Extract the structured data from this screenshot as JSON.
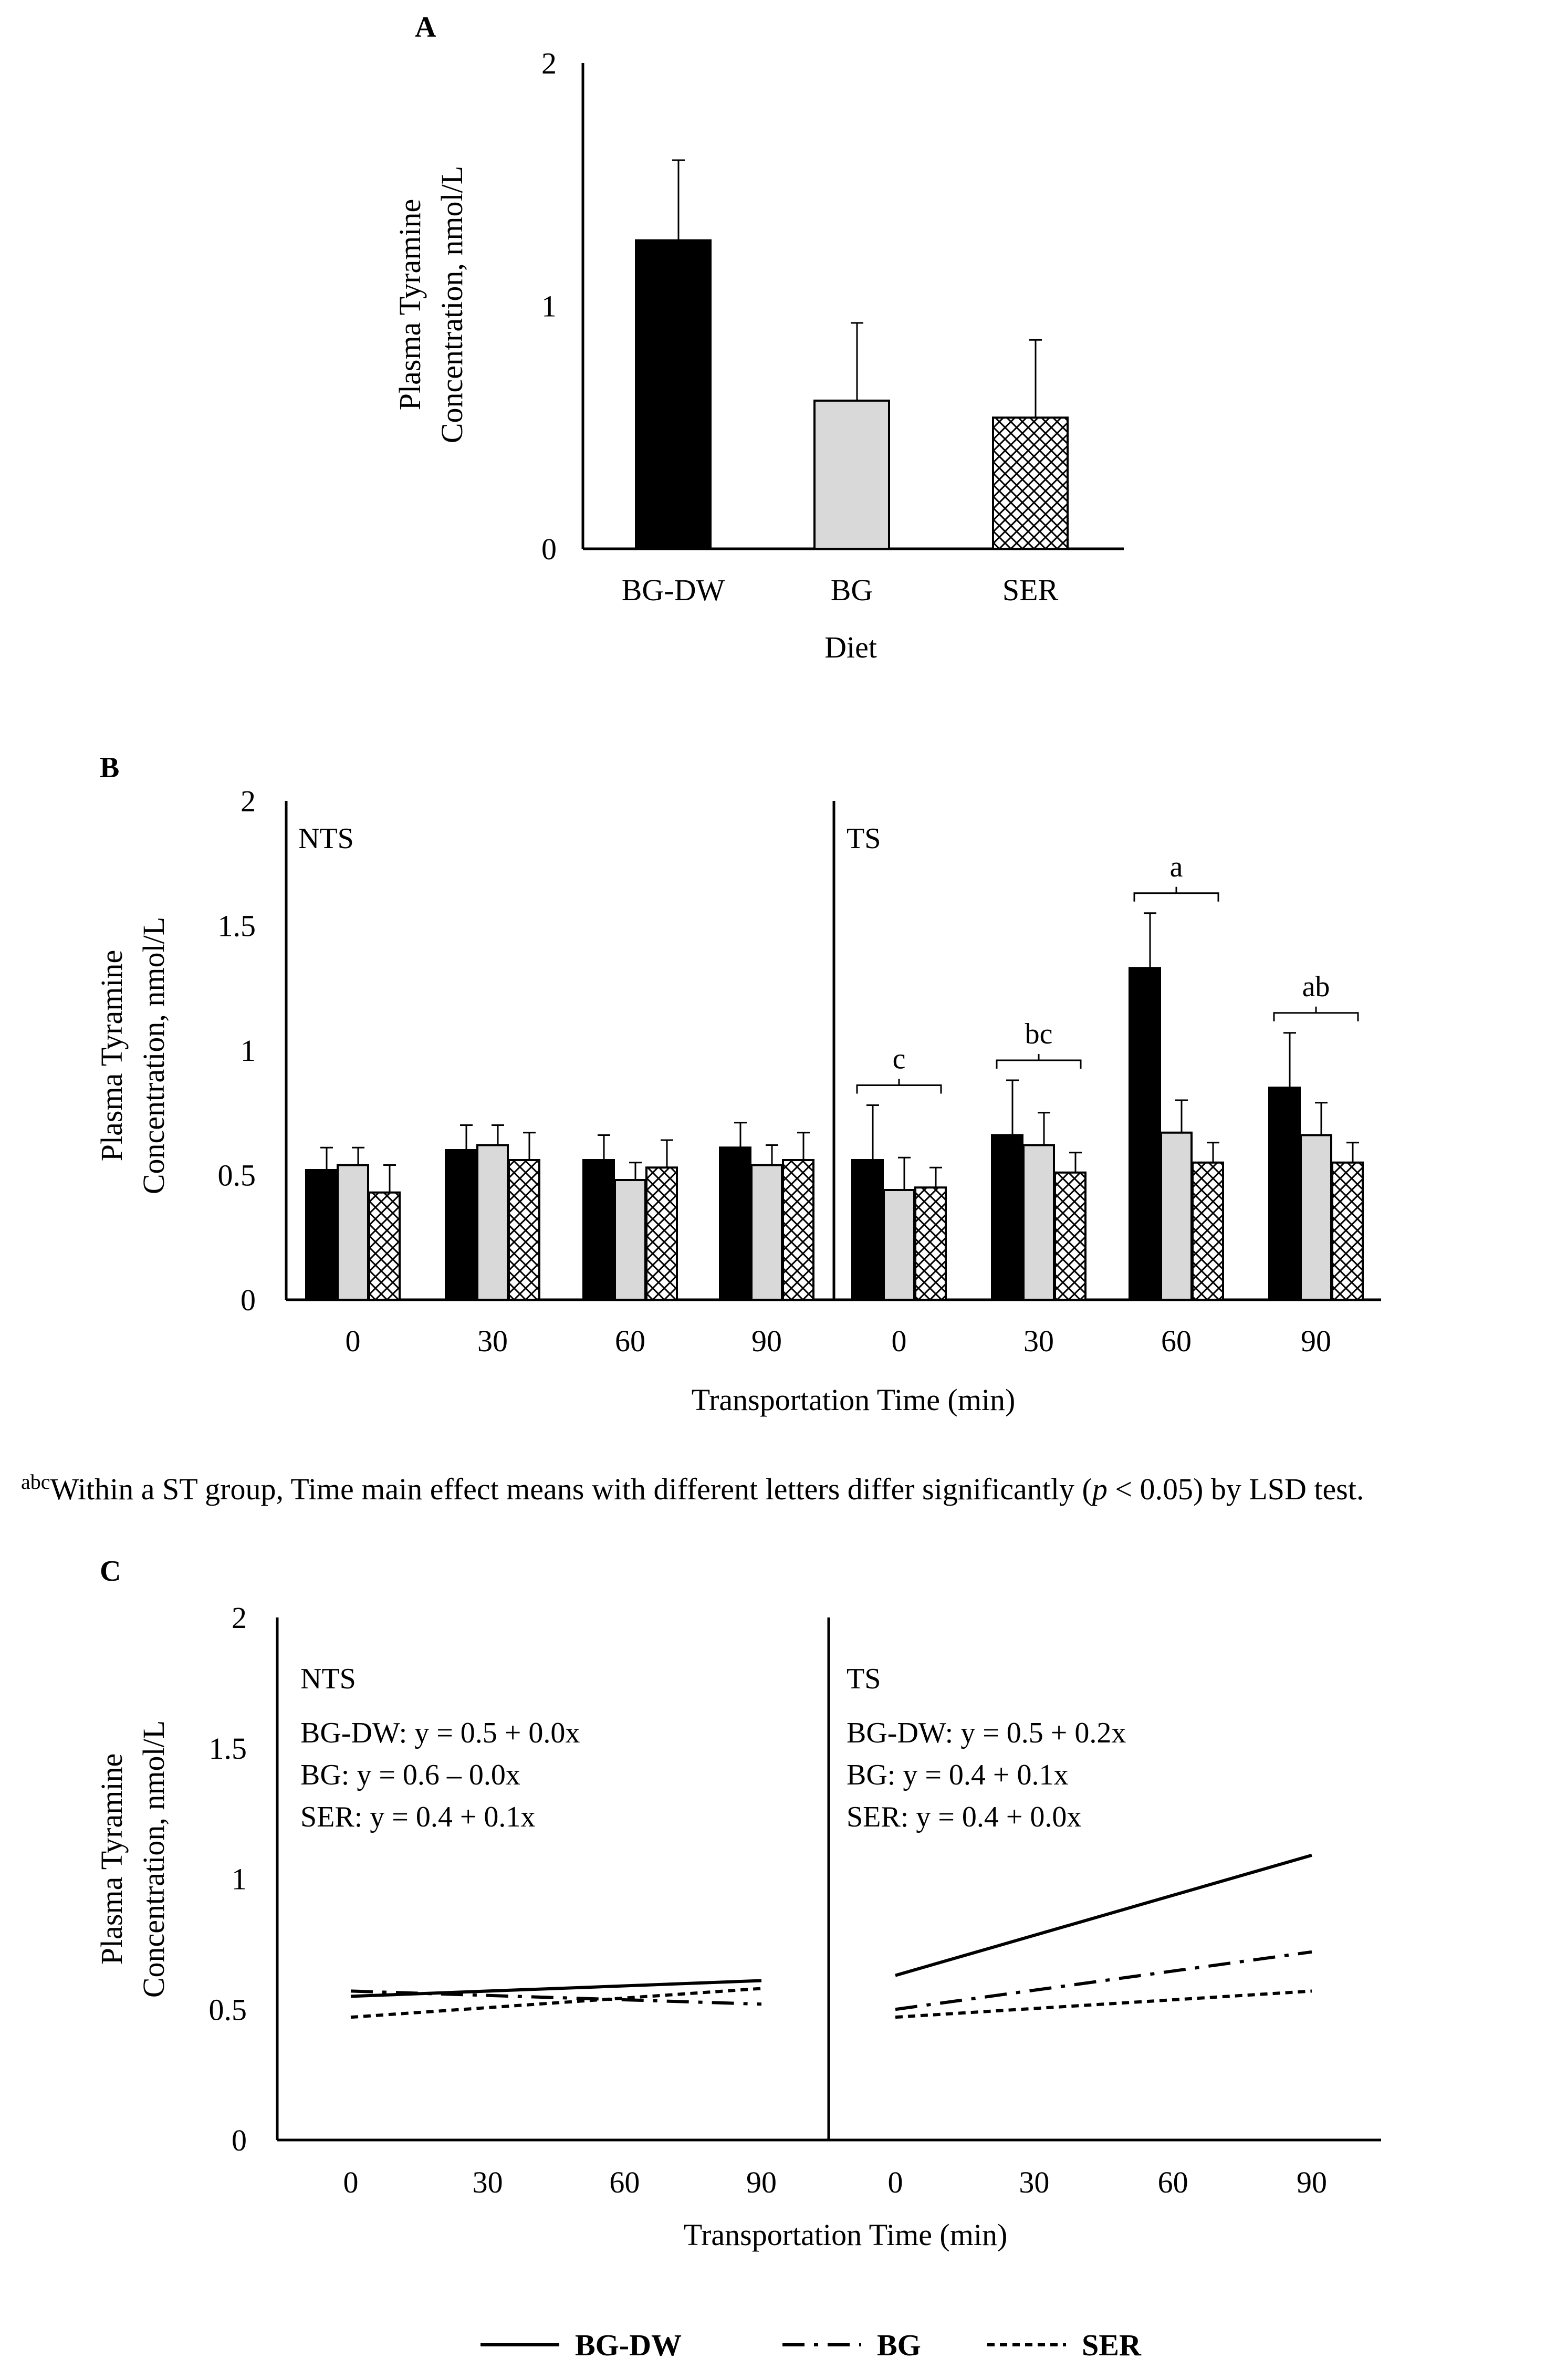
{
  "colors": {
    "bg_dw": "#000000",
    "bg": "#d9d9d9",
    "ser": "#ffffff"
  },
  "chart_data": [
    {
      "panel": "A",
      "type": "bar",
      "title": "A",
      "xlabel": "Diet",
      "ylabel_lines": [
        "Plasma Tyramine",
        "Concentration, nmol/L"
      ],
      "ylim": [
        0,
        2
      ],
      "yticks": [
        0,
        1,
        2
      ],
      "categories": [
        "BG-DW",
        "BG",
        "SER"
      ],
      "values": [
        1.27,
        0.61,
        0.54
      ],
      "errors": [
        0.33,
        0.32,
        0.32
      ],
      "fills": [
        "solid-black",
        "light-gray",
        "crosshatch"
      ]
    },
    {
      "panel": "B",
      "type": "bar",
      "title": "B",
      "xlabel": "Transportation Time (min)",
      "ylabel_lines": [
        "Plasma Tyramine",
        "Concentration, nmol/L"
      ],
      "ylim": [
        0,
        2
      ],
      "yticks": [
        0,
        0.5,
        1,
        1.5,
        2
      ],
      "ytick_labels": [
        "0",
        "0.5",
        "1",
        "1.5",
        "2"
      ],
      "groups": [
        {
          "label": "NTS",
          "categories": [
            "0",
            "30",
            "60",
            "90"
          ],
          "series": [
            {
              "name": "BG-DW",
              "values": [
                0.52,
                0.6,
                0.56,
                0.61
              ],
              "errors": [
                0.09,
                0.1,
                0.1,
                0.1
              ]
            },
            {
              "name": "BG",
              "values": [
                0.54,
                0.62,
                0.48,
                0.54
              ],
              "errors": [
                0.07,
                0.08,
                0.07,
                0.08
              ]
            },
            {
              "name": "SER",
              "values": [
                0.43,
                0.56,
                0.53,
                0.56
              ],
              "errors": [
                0.11,
                0.11,
                0.11,
                0.11
              ]
            }
          ],
          "significance": []
        },
        {
          "label": "TS",
          "categories": [
            "0",
            "30",
            "60",
            "90"
          ],
          "series": [
            {
              "name": "BG-DW",
              "values": [
                0.56,
                0.66,
                1.33,
                0.85
              ],
              "errors": [
                0.22,
                0.22,
                0.22,
                0.22
              ]
            },
            {
              "name": "BG",
              "values": [
                0.44,
                0.62,
                0.67,
                0.66
              ],
              "errors": [
                0.13,
                0.13,
                0.13,
                0.13
              ]
            },
            {
              "name": "SER",
              "values": [
                0.45,
                0.51,
                0.55,
                0.55
              ],
              "errors": [
                0.08,
                0.08,
                0.08,
                0.08
              ]
            }
          ],
          "significance": [
            "c",
            "bc",
            "a",
            "ab"
          ]
        }
      ]
    },
    {
      "panel": "C",
      "type": "line",
      "title": "C",
      "xlabel": "Transportation Time (min)",
      "ylabel_lines": [
        "Plasma Tyramine",
        "Concentration, nmol/L"
      ],
      "ylim": [
        0,
        2
      ],
      "yticks": [
        0,
        0.5,
        1,
        1.5,
        2
      ],
      "ytick_labels": [
        "0",
        "0.5",
        "1",
        "1.5",
        "2"
      ],
      "groups": [
        {
          "label": "NTS",
          "x": [
            0,
            30,
            60,
            90
          ],
          "series": [
            {
              "name": "BG-DW",
              "equation": "BG-DW:  y = 0.5 + 0.0x",
              "start": 0.55,
              "end": 0.61,
              "dash": "solid"
            },
            {
              "name": "BG",
              "equation": "BG:  y = 0.6 – 0.0x",
              "start": 0.57,
              "end": 0.52,
              "dash": "long-dash-dot"
            },
            {
              "name": "SER",
              "equation": "SER:  y = 0.4 + 0.1x",
              "start": 0.47,
              "end": 0.58,
              "dash": "short-dash"
            }
          ]
        },
        {
          "label": "TS",
          "x": [
            0,
            30,
            60,
            90
          ],
          "series": [
            {
              "name": "BG-DW",
              "equation": "BG-DW:  y = 0.5 + 0.2x",
              "start": 0.63,
              "end": 1.09,
              "dash": "solid"
            },
            {
              "name": "BG",
              "equation": "BG:  y = 0.4 + 0.1x",
              "start": 0.5,
              "end": 0.72,
              "dash": "long-dash-dot"
            },
            {
              "name": "SER",
              "equation": "SER:  y = 0.4 + 0.0x",
              "start": 0.47,
              "end": 0.57,
              "dash": "short-dash"
            }
          ]
        }
      ]
    }
  ],
  "footnote": {
    "superscript": "abc",
    "pre": "Within a ST group, Time main effect means with different letters differ significantly  (",
    "p": "p",
    "post": " < 0.05) by LSD test."
  },
  "legend": [
    {
      "name": "BG-DW",
      "dash": "solid"
    },
    {
      "name": "BG",
      "dash": "long-dash-dot"
    },
    {
      "name": "SER",
      "dash": "short-dash"
    }
  ]
}
